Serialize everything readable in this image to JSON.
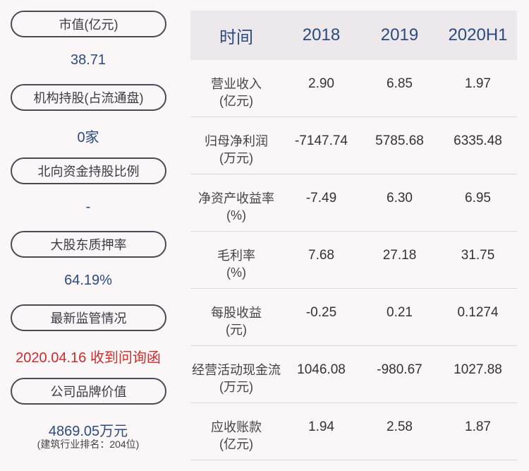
{
  "left_panel": [
    {
      "label": "市值(亿元)",
      "value": "38.71"
    },
    {
      "label": "机构持股(占流通盘)",
      "value": "0家"
    },
    {
      "label": "北向资金持股比例",
      "value": "-"
    },
    {
      "label": "大股东质押率",
      "value": "64.19%"
    },
    {
      "label": "最新监管情况",
      "value": "2020.04.16 收到问询函"
    },
    {
      "label": "公司品牌价值",
      "value": "4869.05万元",
      "note": "(建筑行业排名：204位)"
    }
  ],
  "table": {
    "headers": [
      "时间",
      "2018",
      "2019",
      "2020H1"
    ],
    "rows": [
      {
        "label1": "营业收入",
        "label2": "(亿元)",
        "values": [
          "2.90",
          "6.85",
          "1.97"
        ]
      },
      {
        "label1": "归母净利润",
        "label2": "(万元)",
        "values": [
          "-7147.74",
          "5785.68",
          "6335.48"
        ]
      },
      {
        "label1": "净资产收益率",
        "label2": "(%)",
        "values": [
          "-7.49",
          "6.30",
          "6.95"
        ]
      },
      {
        "label1": "毛利率",
        "label2": "(%)",
        "values": [
          "7.68",
          "27.18",
          "31.75"
        ]
      },
      {
        "label1": "每股收益",
        "label2": "(元)",
        "values": [
          "-0.25",
          "0.21",
          "0.1274"
        ]
      },
      {
        "label1": "经营活动现金流",
        "label2": "(万元)",
        "values": [
          "1046.08",
          "-980.67",
          "1027.88"
        ]
      },
      {
        "label1": "应收账款",
        "label2": "(亿元)",
        "values": [
          "1.94",
          "2.58",
          "1.87"
        ]
      }
    ]
  },
  "colors": {
    "value_blue": "#2b4a7d",
    "alert_red": "#d02a2a",
    "header_bg": "#ece8ec",
    "page_bg": "#fbf7f8"
  }
}
